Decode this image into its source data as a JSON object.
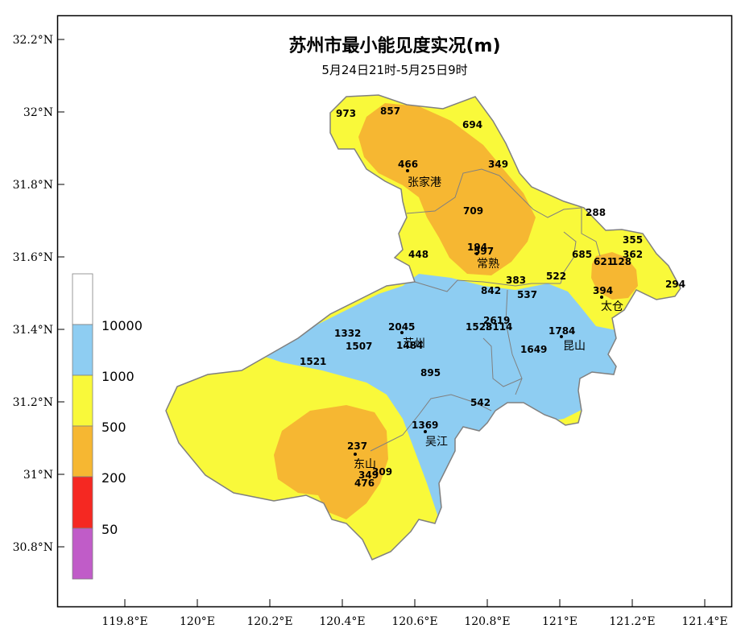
{
  "map": {
    "title": "苏州市最小能见度实况(m)",
    "subtitle": "5月24日21时-5月25日9时",
    "lat_ticks": [
      "32.2°N",
      "32°N",
      "31.8°N",
      "31.6°N",
      "31.4°N",
      "31.2°N",
      "31°N",
      "30.8°N"
    ],
    "lon_ticks": [
      "119.8°E",
      "120°E",
      "120.2°E",
      "120.4°E",
      "120.6°E",
      "120.8°E",
      "121°E",
      "121.2°E",
      "121.4°E"
    ],
    "legend": {
      "labels": [
        "10000",
        "1000",
        "500",
        "200",
        "50"
      ],
      "colors": [
        "#ffffff",
        "#8ecdf2",
        "#f9f93a",
        "#f6b732",
        "#f52822",
        "#c05cc8"
      ]
    },
    "cities": [
      "张家港",
      "常熟",
      "太仓",
      "苏州",
      "昆山",
      "吴江",
      "东山"
    ],
    "stations": [
      "973",
      "857",
      "694",
      "466",
      "349",
      "709",
      "288",
      "355",
      "362",
      "194",
      "597",
      "448",
      "685",
      "621",
      "128",
      "294",
      "383",
      "522",
      "842",
      "537",
      "394",
      "2619",
      "1528",
      "3114",
      "2045",
      "1332",
      "1507",
      "1484",
      "1784",
      "1649",
      "1521",
      "895",
      "542",
      "1369",
      "237",
      "349",
      "309",
      "476"
    ],
    "region_colors": {
      "yellow": "#f9f93a",
      "orange": "#f6b732",
      "blue": "#8ecdf2",
      "border": "#808080"
    }
  }
}
